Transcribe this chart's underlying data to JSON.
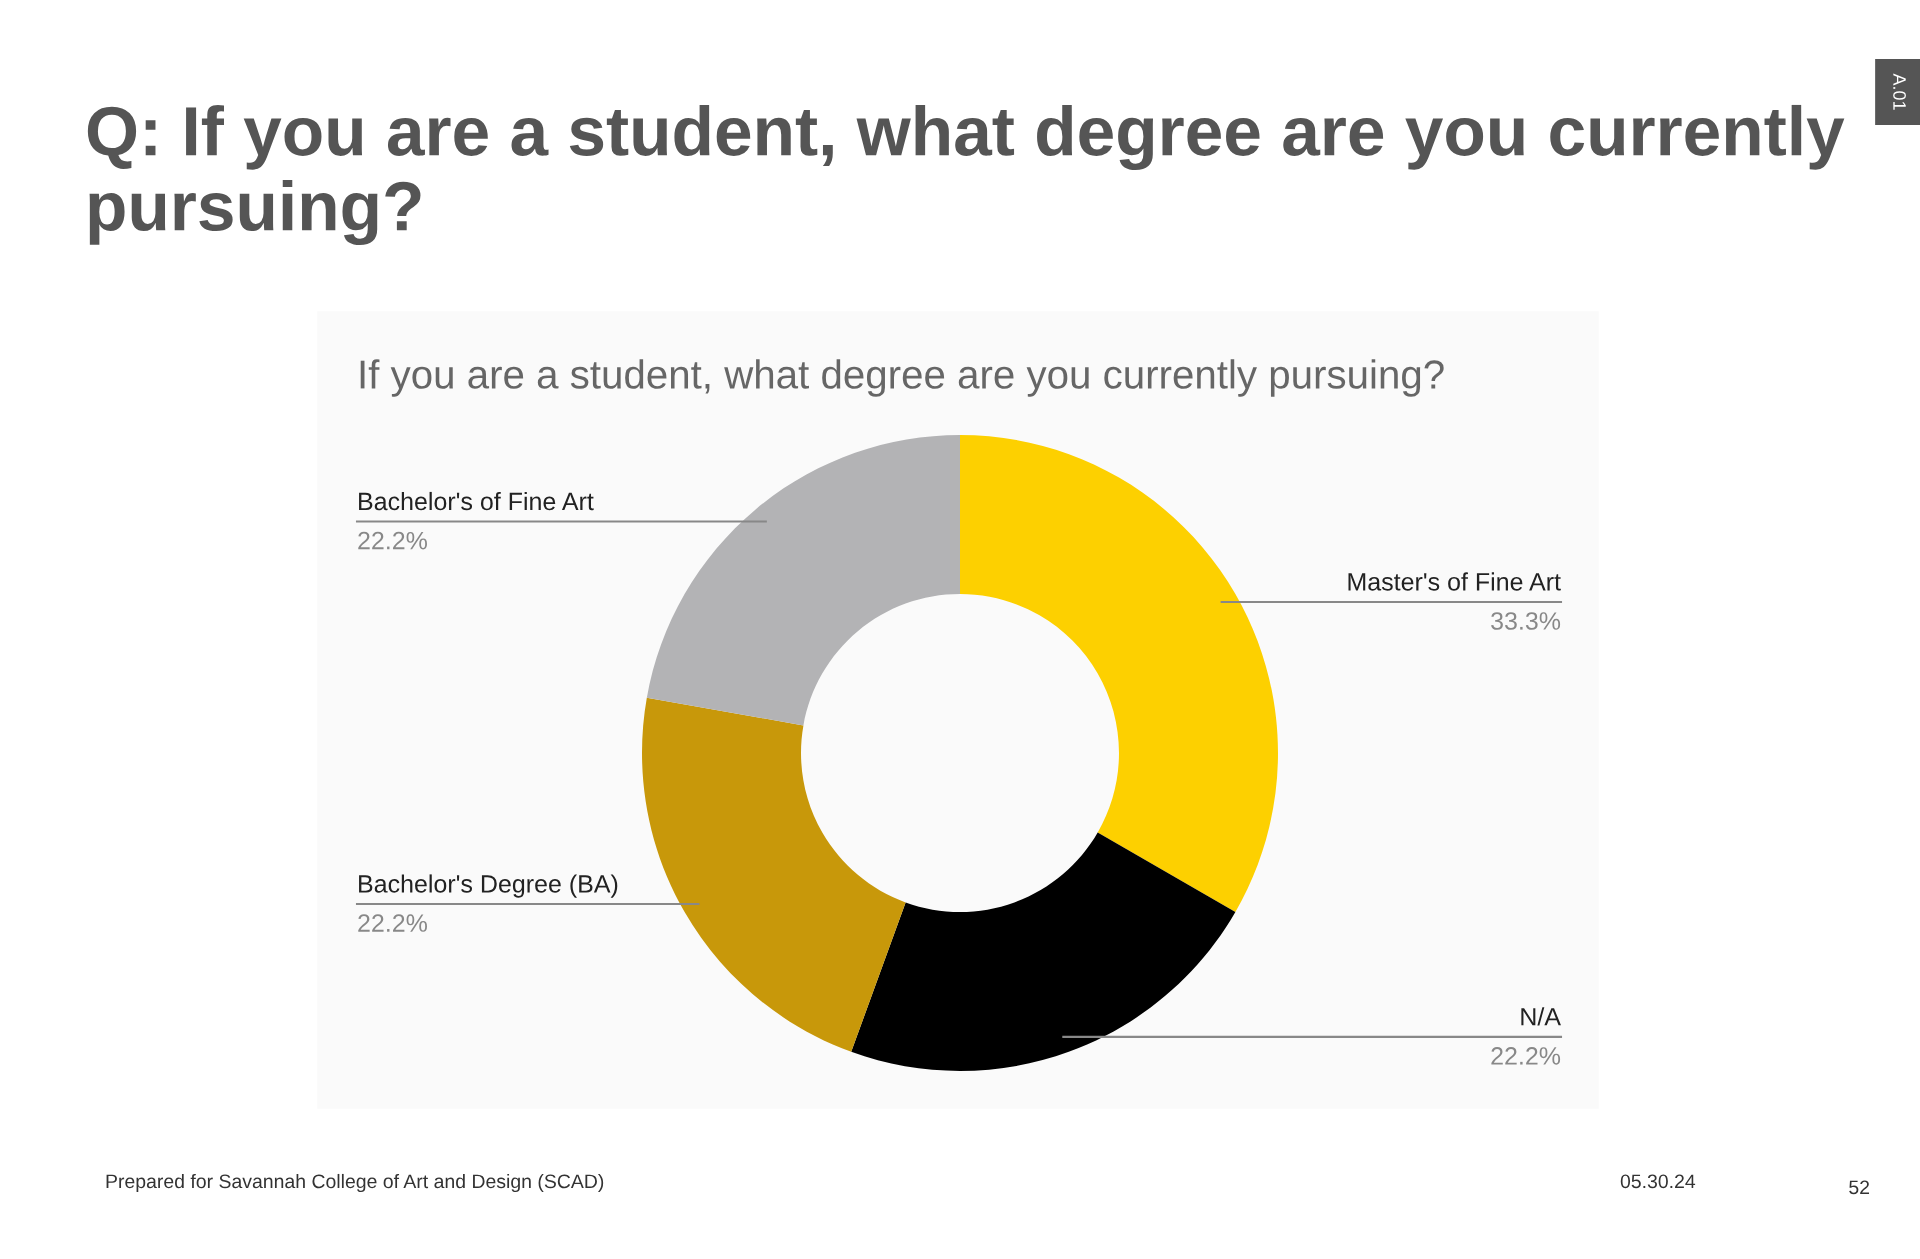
{
  "chart_data": {
    "type": "donut",
    "title": "Q: If you are a student, what degree are you currently pursuing?",
    "subtitle": "If you are a student, what degree are you currently pursuing?",
    "categories": [
      "Master's of Fine Art",
      "N/A",
      "Bachelor's Degree (BA)",
      "Bachelor's of Fine Art"
    ],
    "values": [
      33.3,
      22.2,
      22.2,
      22.2
    ],
    "value_labels": [
      "33.3%",
      "22.2%",
      "22.2%",
      "22.2%"
    ],
    "colors": [
      "#fdd000",
      "#000000",
      "#c8980a",
      "#b3b3b5"
    ],
    "legend": false,
    "annotations": [
      "A.01",
      "Prepared for Savannah College of Art and Design (SCAD)",
      "05.30.24",
      "52"
    ]
  }
}
